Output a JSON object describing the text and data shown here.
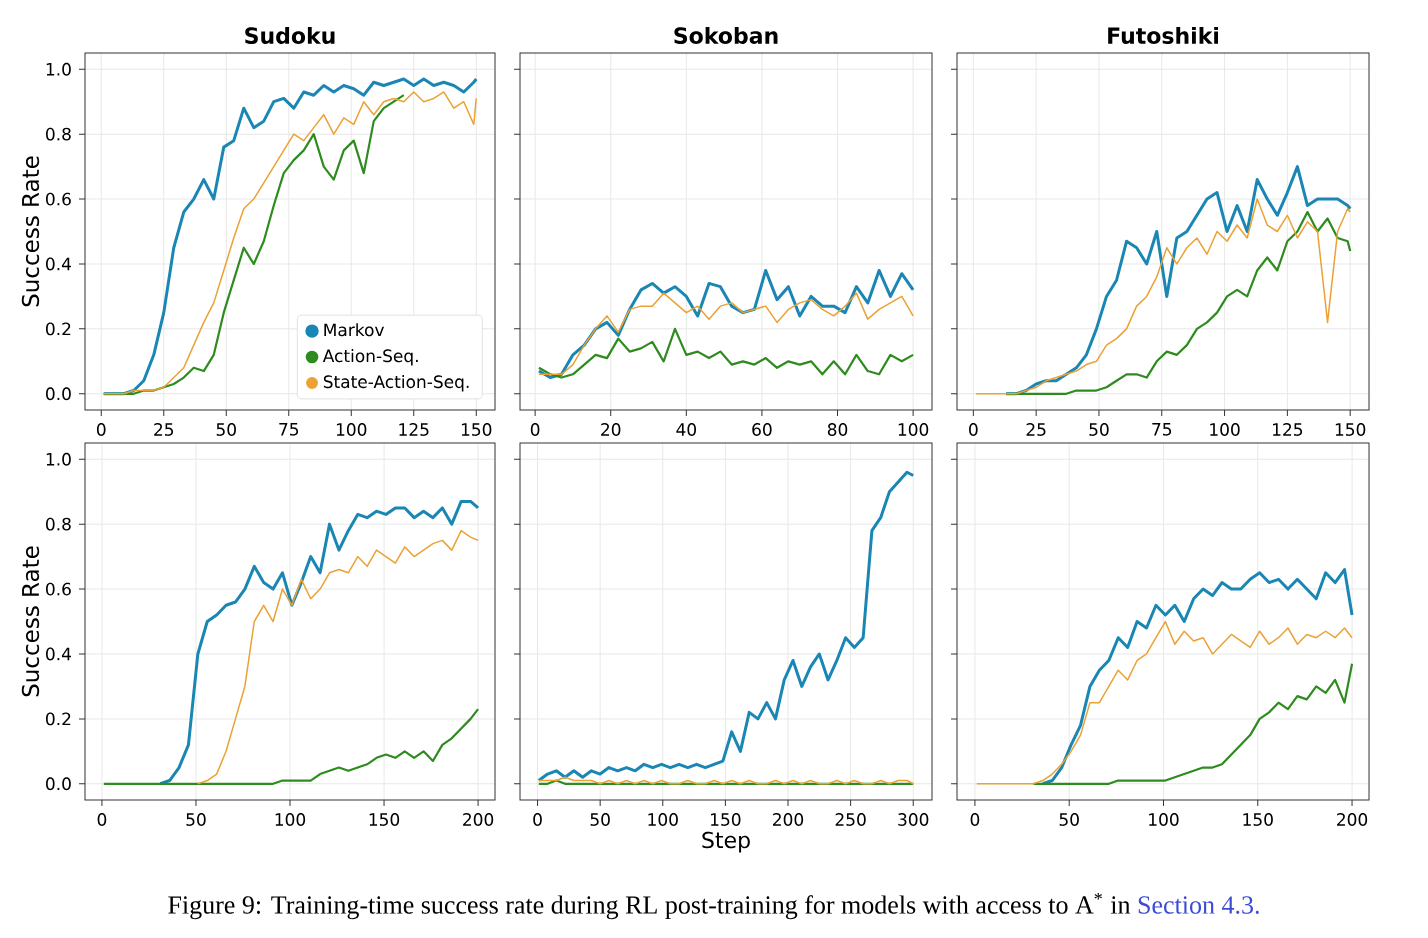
{
  "chart_data": [
    {
      "type": "line",
      "title": "Sudoku",
      "ylabel": "Success Rate",
      "grid": true,
      "legend": "bottom right",
      "xlim": [
        -6.5,
        157.5
      ],
      "ylim": [
        -0.05,
        1.05
      ],
      "xticks": [
        0,
        25,
        50,
        75,
        100,
        125,
        150
      ],
      "yticks": [
        {
          "value": 0,
          "label": "0.0"
        },
        {
          "value": 0.2,
          "label": "0.2"
        },
        {
          "value": 0.4,
          "label": "0.4"
        },
        {
          "value": 0.6,
          "label": "0.6"
        },
        {
          "value": 0.8,
          "label": "0.8"
        },
        {
          "value": 1,
          "label": "1.0"
        }
      ],
      "x": [
        1,
        5,
        9,
        13,
        17,
        21,
        25,
        29,
        33,
        37,
        41,
        45,
        49,
        53,
        57,
        61,
        65,
        69,
        73,
        77,
        81,
        85,
        89,
        93,
        97,
        101,
        105,
        109,
        113,
        117,
        121,
        125,
        129,
        133,
        137,
        141,
        145,
        149,
        150
      ],
      "series": [
        {
          "name": "Markov",
          "color": "#1a86b4",
          "values": [
            0,
            0,
            0,
            0.01,
            0.04,
            0.12,
            0.25,
            0.45,
            0.56,
            0.6,
            0.66,
            0.6,
            0.76,
            0.78,
            0.88,
            0.82,
            0.84,
            0.9,
            0.91,
            0.88,
            0.93,
            0.92,
            0.95,
            0.93,
            0.95,
            0.94,
            0.92,
            0.96,
            0.95,
            0.96,
            0.97,
            0.95,
            0.97,
            0.95,
            0.96,
            0.95,
            0.93,
            0.96,
            0.97
          ]
        },
        {
          "name": "Action-Seq.",
          "color": "#2e8b1e",
          "x": [
            1,
            5,
            9,
            13,
            17,
            21,
            25,
            29,
            33,
            37,
            41,
            45,
            49,
            53,
            57,
            61,
            65,
            69,
            73,
            77,
            81,
            85,
            89,
            93,
            97,
            101,
            105,
            109,
            113,
            117,
            121
          ],
          "values": [
            0,
            0,
            0,
            0,
            0.01,
            0.01,
            0.02,
            0.03,
            0.05,
            0.08,
            0.07,
            0.12,
            0.25,
            0.35,
            0.45,
            0.4,
            0.47,
            0.58,
            0.68,
            0.72,
            0.75,
            0.8,
            0.7,
            0.66,
            0.75,
            0.78,
            0.68,
            0.84,
            0.88,
            0.9,
            0.92
          ]
        },
        {
          "name": "State-Action-Seq.",
          "color": "#eba134",
          "values": [
            0,
            0,
            0,
            0.01,
            0.01,
            0.01,
            0.02,
            0.05,
            0.08,
            0.15,
            0.22,
            0.28,
            0.38,
            0.48,
            0.57,
            0.6,
            0.65,
            0.7,
            0.75,
            0.8,
            0.78,
            0.82,
            0.86,
            0.8,
            0.85,
            0.83,
            0.9,
            0.86,
            0.9,
            0.91,
            0.9,
            0.93,
            0.9,
            0.91,
            0.93,
            0.88,
            0.9,
            0.83,
            0.91
          ]
        }
      ]
    },
    {
      "type": "line",
      "title": "Sokoban",
      "grid": true,
      "tick_labels": "x",
      "xlim": [
        -4,
        105
      ],
      "ylim": [
        -0.05,
        1.05
      ],
      "xticks": [
        0,
        20,
        40,
        60,
        80,
        100
      ],
      "yticks": [
        {
          "value": 0,
          "label": null
        },
        {
          "value": 0.2,
          "label": null
        },
        {
          "value": 0.4,
          "label": null
        },
        {
          "value": 0.6,
          "label": null
        },
        {
          "value": 0.8,
          "label": null
        },
        {
          "value": 1,
          "label": null
        }
      ],
      "x": [
        1,
        4,
        7,
        10,
        13,
        16,
        19,
        22,
        25,
        28,
        31,
        34,
        37,
        40,
        43,
        46,
        49,
        52,
        55,
        58,
        61,
        64,
        67,
        70,
        73,
        76,
        79,
        82,
        85,
        88,
        91,
        94,
        97,
        100
      ],
      "series": [
        {
          "color": "#1a86b4",
          "values": [
            0.07,
            0.05,
            0.06,
            0.12,
            0.15,
            0.2,
            0.22,
            0.18,
            0.26,
            0.32,
            0.34,
            0.31,
            0.33,
            0.3,
            0.24,
            0.34,
            0.33,
            0.27,
            0.25,
            0.26,
            0.38,
            0.29,
            0.33,
            0.24,
            0.3,
            0.27,
            0.27,
            0.25,
            0.33,
            0.28,
            0.38,
            0.3,
            0.37,
            0.32
          ]
        },
        {
          "color": "#2e8b1e",
          "values": [
            0.08,
            0.06,
            0.05,
            0.06,
            0.09,
            0.12,
            0.11,
            0.17,
            0.13,
            0.14,
            0.16,
            0.1,
            0.2,
            0.12,
            0.13,
            0.11,
            0.13,
            0.09,
            0.1,
            0.09,
            0.11,
            0.08,
            0.1,
            0.09,
            0.1,
            0.06,
            0.1,
            0.06,
            0.12,
            0.07,
            0.06,
            0.12,
            0.1,
            0.12
          ]
        },
        {
          "color": "#eba134",
          "values": [
            0.06,
            0.06,
            0.06,
            0.09,
            0.15,
            0.2,
            0.24,
            0.19,
            0.26,
            0.27,
            0.27,
            0.31,
            0.28,
            0.25,
            0.27,
            0.23,
            0.27,
            0.28,
            0.25,
            0.26,
            0.27,
            0.22,
            0.26,
            0.28,
            0.29,
            0.26,
            0.24,
            0.27,
            0.31,
            0.23,
            0.26,
            0.28,
            0.3,
            0.24
          ]
        }
      ]
    },
    {
      "type": "line",
      "title": "Futoshiki",
      "grid": true,
      "tick_labels": "x",
      "xlim": [
        -6.5,
        157.5
      ],
      "ylim": [
        -0.05,
        1.05
      ],
      "xticks": [
        0,
        25,
        50,
        75,
        100,
        125,
        150
      ],
      "yticks": [
        {
          "value": 0,
          "label": null
        },
        {
          "value": 0.2,
          "label": null
        },
        {
          "value": 0.4,
          "label": null
        },
        {
          "value": 0.6,
          "label": null
        },
        {
          "value": 0.8,
          "label": null
        },
        {
          "value": 1,
          "label": null
        }
      ],
      "x": [
        1,
        5,
        9,
        13,
        17,
        21,
        25,
        29,
        33,
        37,
        41,
        45,
        49,
        53,
        57,
        61,
        65,
        69,
        73,
        77,
        81,
        85,
        89,
        93,
        97,
        101,
        105,
        109,
        113,
        117,
        121,
        125,
        129,
        133,
        137,
        141,
        145,
        149,
        150
      ],
      "series": [
        {
          "color": "#1a86b4",
          "values": [
            null,
            null,
            null,
            0,
            0,
            0.01,
            0.03,
            0.04,
            0.04,
            0.06,
            0.08,
            0.12,
            0.2,
            0.3,
            0.35,
            0.47,
            0.45,
            0.4,
            0.5,
            0.3,
            0.48,
            0.5,
            0.55,
            0.6,
            0.62,
            0.5,
            0.58,
            0.5,
            0.66,
            0.6,
            0.55,
            0.62,
            0.7,
            0.58,
            0.6,
            0.6,
            0.6,
            0.58,
            0.57
          ]
        },
        {
          "color": "#2e8b1e",
          "values": [
            null,
            null,
            null,
            0,
            0,
            0,
            0,
            0,
            0,
            0,
            0.01,
            0.01,
            0.01,
            0.02,
            0.04,
            0.06,
            0.06,
            0.05,
            0.1,
            0.13,
            0.12,
            0.15,
            0.2,
            0.22,
            0.25,
            0.3,
            0.32,
            0.3,
            0.38,
            0.42,
            0.38,
            0.47,
            0.5,
            0.56,
            0.5,
            0.54,
            0.48,
            0.47,
            0.44
          ]
        },
        {
          "color": "#eba134",
          "values": [
            0,
            0,
            0,
            0,
            0,
            0.01,
            0.02,
            0.04,
            0.05,
            0.06,
            0.07,
            0.09,
            0.1,
            0.15,
            0.17,
            0.2,
            0.27,
            0.3,
            0.36,
            0.45,
            0.4,
            0.45,
            0.48,
            0.43,
            0.5,
            0.47,
            0.52,
            0.48,
            0.6,
            0.52,
            0.5,
            0.55,
            0.48,
            0.53,
            0.5,
            0.22,
            0.5,
            0.57,
            0.56
          ]
        }
      ]
    },
    {
      "type": "line",
      "ylabel": "Success Rate",
      "grid": true,
      "xlim": [
        -9,
        209
      ],
      "ylim": [
        -0.05,
        1.05
      ],
      "xticks": [
        0,
        50,
        100,
        150,
        200
      ],
      "yticks": [
        {
          "value": 0,
          "label": "0.0"
        },
        {
          "value": 0.2,
          "label": "0.2"
        },
        {
          "value": 0.4,
          "label": "0.4"
        },
        {
          "value": 0.6,
          "label": "0.6"
        },
        {
          "value": 0.8,
          "label": "0.8"
        },
        {
          "value": 1,
          "label": "1.0"
        }
      ],
      "x": [
        1,
        6,
        11,
        16,
        21,
        26,
        31,
        36,
        41,
        46,
        51,
        56,
        61,
        66,
        71,
        76,
        81,
        86,
        91,
        96,
        101,
        106,
        111,
        116,
        121,
        126,
        131,
        136,
        141,
        146,
        151,
        156,
        161,
        166,
        171,
        176,
        181,
        186,
        191,
        196,
        200
      ],
      "series": [
        {
          "color": "#1a86b4",
          "values": [
            null,
            null,
            null,
            null,
            null,
            null,
            0,
            0.01,
            0.05,
            0.12,
            0.4,
            0.5,
            0.52,
            0.55,
            0.56,
            0.6,
            0.67,
            0.62,
            0.6,
            0.65,
            0.55,
            0.62,
            0.7,
            0.65,
            0.8,
            0.72,
            0.78,
            0.83,
            0.82,
            0.84,
            0.83,
            0.85,
            0.85,
            0.82,
            0.84,
            0.82,
            0.85,
            0.8,
            0.87,
            0.87,
            0.85
          ]
        },
        {
          "color": "#2e8b1e",
          "values": [
            0,
            0,
            0,
            0,
            0,
            0,
            0,
            0,
            0,
            0,
            0,
            0,
            0,
            0,
            0,
            0,
            0,
            0,
            0,
            0.01,
            0.01,
            0.01,
            0.01,
            0.03,
            0.04,
            0.05,
            0.04,
            0.05,
            0.06,
            0.08,
            0.09,
            0.08,
            0.1,
            0.08,
            0.1,
            0.07,
            0.12,
            0.14,
            0.17,
            0.2,
            0.23
          ]
        },
        {
          "color": "#eba134",
          "values": [
            null,
            null,
            null,
            null,
            null,
            null,
            null,
            null,
            null,
            null,
            0,
            0.01,
            0.03,
            0.1,
            0.2,
            0.3,
            0.5,
            0.55,
            0.5,
            0.6,
            0.55,
            0.63,
            0.57,
            0.6,
            0.65,
            0.66,
            0.65,
            0.7,
            0.67,
            0.72,
            0.7,
            0.68,
            0.73,
            0.7,
            0.72,
            0.74,
            0.75,
            0.72,
            0.78,
            0.76,
            0.75
          ]
        }
      ]
    },
    {
      "type": "line",
      "xlabel": "Step",
      "grid": true,
      "tick_labels": "x",
      "annotations": [
        "Figure 9: Training-time success rate during RL post-training for models with access to A$^{*}$ in",
        "Section 4.3."
      ],
      "xlim": [
        -14,
        315
      ],
      "ylim": [
        -0.05,
        1.05
      ],
      "xticks": [
        0,
        50,
        100,
        150,
        200,
        250,
        300
      ],
      "yticks": [
        {
          "value": 0,
          "label": null
        },
        {
          "value": 0.2,
          "label": null
        },
        {
          "value": 0.4,
          "label": null
        },
        {
          "value": 0.6,
          "label": null
        },
        {
          "value": 0.8,
          "label": null
        },
        {
          "value": 1,
          "label": null
        }
      ],
      "x": [
        1,
        8,
        15,
        22,
        29,
        36,
        43,
        50,
        57,
        64,
        71,
        78,
        85,
        92,
        99,
        106,
        113,
        120,
        127,
        134,
        141,
        148,
        155,
        162,
        169,
        176,
        183,
        190,
        197,
        204,
        211,
        218,
        225,
        232,
        239,
        246,
        253,
        260,
        267,
        274,
        281,
        288,
        295,
        300
      ],
      "series": [
        {
          "color": "#1a86b4",
          "values": [
            0.01,
            0.03,
            0.04,
            0.02,
            0.04,
            0.02,
            0.04,
            0.03,
            0.05,
            0.04,
            0.05,
            0.04,
            0.06,
            0.05,
            0.06,
            0.05,
            0.06,
            0.05,
            0.06,
            0.05,
            0.06,
            0.07,
            0.16,
            0.1,
            0.22,
            0.2,
            0.25,
            0.2,
            0.32,
            0.38,
            0.3,
            0.36,
            0.4,
            0.32,
            0.38,
            0.45,
            0.42,
            0.45,
            0.78,
            0.82,
            0.9,
            0.93,
            0.96,
            0.95
          ]
        },
        {
          "color": "#2e8b1e",
          "values": [
            0,
            0,
            0.01,
            0,
            0,
            0,
            0,
            0,
            0,
            0,
            0,
            0,
            0,
            0,
            0,
            0,
            0,
            0,
            0,
            0,
            0,
            0,
            0,
            0,
            0,
            0,
            0,
            0,
            0,
            0,
            0,
            0,
            0,
            0,
            0,
            0,
            0,
            0,
            0,
            0,
            0,
            0,
            0,
            0
          ]
        },
        {
          "color": "#eba134",
          "values": [
            0.01,
            0.01,
            0.01,
            0.02,
            0.01,
            0.01,
            0.01,
            0,
            0.01,
            0,
            0.01,
            0,
            0.01,
            0,
            0.01,
            0,
            0,
            0.01,
            0,
            0,
            0.01,
            0,
            0.01,
            0,
            0.01,
            0,
            0,
            0.01,
            0,
            0.01,
            0,
            0.01,
            0,
            0,
            0.01,
            0,
            0.01,
            0,
            0,
            0.01,
            0,
            0.01,
            0.01,
            0
          ]
        }
      ]
    },
    {
      "type": "line",
      "grid": true,
      "tick_labels": "x",
      "xlim": [
        -9.5,
        209
      ],
      "ylim": [
        -0.05,
        1.05
      ],
      "xticks": [
        0,
        50,
        100,
        150,
        200
      ],
      "yticks": [
        {
          "value": 0,
          "label": null
        },
        {
          "value": 0.2,
          "label": null
        },
        {
          "value": 0.4,
          "label": null
        },
        {
          "value": 0.6,
          "label": null
        },
        {
          "value": 0.8,
          "label": null
        },
        {
          "value": 1,
          "label": null
        }
      ],
      "x": [
        1,
        6,
        11,
        16,
        21,
        26,
        31,
        36,
        41,
        46,
        51,
        56,
        61,
        66,
        71,
        76,
        81,
        86,
        91,
        96,
        101,
        106,
        111,
        116,
        121,
        126,
        131,
        136,
        141,
        146,
        151,
        156,
        161,
        166,
        171,
        176,
        181,
        186,
        191,
        196,
        200
      ],
      "series": [
        {
          "color": "#1a86b4",
          "values": [
            null,
            null,
            null,
            null,
            null,
            null,
            null,
            0,
            0.01,
            0.05,
            0.12,
            0.18,
            0.3,
            0.35,
            0.38,
            0.45,
            0.42,
            0.5,
            0.48,
            0.55,
            0.52,
            0.55,
            0.5,
            0.57,
            0.6,
            0.58,
            0.62,
            0.6,
            0.6,
            0.63,
            0.65,
            0.62,
            0.63,
            0.6,
            0.63,
            0.6,
            0.57,
            0.65,
            0.62,
            0.66,
            0.52
          ]
        },
        {
          "color": "#2e8b1e",
          "values": [
            null,
            null,
            null,
            null,
            null,
            null,
            0,
            0,
            0,
            0,
            0,
            0,
            0,
            0,
            0,
            0.01,
            0.01,
            0.01,
            0.01,
            0.01,
            0.01,
            0.02,
            0.03,
            0.04,
            0.05,
            0.05,
            0.06,
            0.09,
            0.12,
            0.15,
            0.2,
            0.22,
            0.25,
            0.23,
            0.27,
            0.26,
            0.3,
            0.28,
            0.32,
            0.25,
            0.37
          ]
        },
        {
          "color": "#eba134",
          "values": [
            0,
            0,
            0,
            0,
            0,
            0,
            0,
            0.01,
            0.03,
            0.06,
            0.1,
            0.15,
            0.25,
            0.25,
            0.3,
            0.35,
            0.32,
            0.38,
            0.4,
            0.45,
            0.5,
            0.43,
            0.47,
            0.44,
            0.45,
            0.4,
            0.43,
            0.46,
            0.44,
            0.42,
            0.47,
            0.43,
            0.45,
            0.48,
            0.43,
            0.46,
            0.45,
            0.47,
            0.45,
            0.48,
            0.45
          ]
        }
      ]
    }
  ]
}
